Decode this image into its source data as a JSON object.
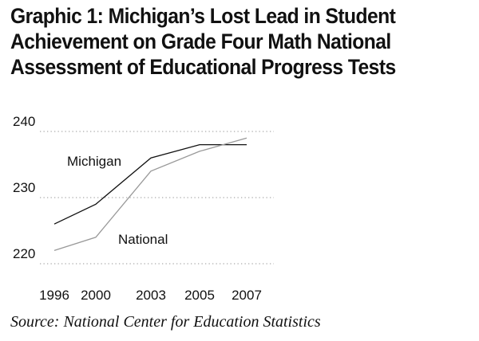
{
  "chart_data": {
    "type": "line",
    "title_lines": [
      "Graphic 1: Michigan’s Lost Lead in Student",
      "Achievement on Grade Four Math National",
      "Assessment of Educational Progress Tests"
    ],
    "categories": [
      "1996",
      "2000",
      "2003",
      "2005",
      "2007"
    ],
    "series": [
      {
        "name": "Michigan",
        "values": [
          226,
          229,
          236,
          238,
          238
        ],
        "color": "#111111"
      },
      {
        "name": "National",
        "values": [
          222,
          224,
          234,
          237,
          239
        ],
        "color": "#999999"
      }
    ],
    "yticks": [
      "220",
      "230",
      "240"
    ],
    "ylim": [
      220,
      240
    ],
    "grid": "dotted horizontal",
    "xlabel": "",
    "ylabel": "",
    "source": "Source: National Center for Education Statistics"
  }
}
